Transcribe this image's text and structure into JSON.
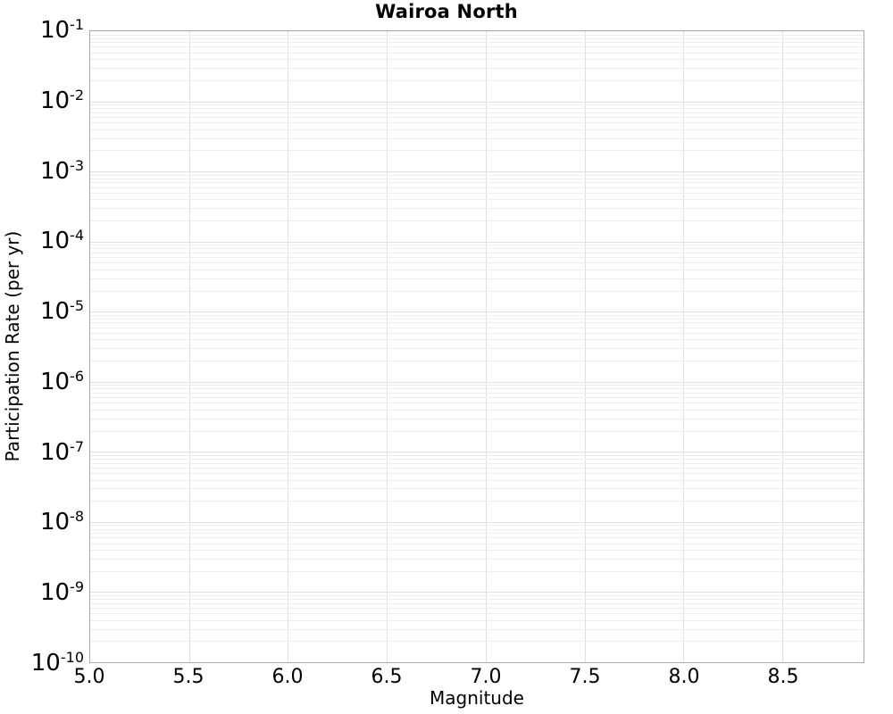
{
  "figure": {
    "background_color": "#ffffff",
    "frame_color": "#a9a9a9",
    "text_color": "#000000"
  },
  "chart_data": {
    "type": "line",
    "title": "Wairoa North",
    "xlabel": "Magnitude",
    "ylabel": "Participation Rate (per yr)",
    "x_axis": {
      "scale": "linear",
      "min": 5.0,
      "max": 8.91,
      "ticks": [
        5.0,
        5.5,
        6.0,
        6.5,
        7.0,
        7.5,
        8.0,
        8.5
      ],
      "tick_labels": [
        "5.0",
        "5.5",
        "6.0",
        "6.5",
        "7.0",
        "7.5",
        "8.0",
        "8.5"
      ]
    },
    "y_axis": {
      "scale": "log",
      "min": 1e-10,
      "max": 0.1,
      "max_exponent": -1,
      "min_exponent": -10,
      "tick_base": "10",
      "tick_exponents": [
        -1,
        -2,
        -3,
        -4,
        -5,
        -6,
        -7,
        -8,
        -9,
        -10
      ],
      "minor_ticks_per_decade": [
        2,
        3,
        4,
        5,
        6,
        7,
        8,
        9
      ]
    },
    "series": [],
    "grid": {
      "major": true,
      "minor_y": true,
      "minor_x": false,
      "major_color": "#e0e0e0",
      "minor_color": "#eeeeee",
      "legend": "none"
    }
  }
}
